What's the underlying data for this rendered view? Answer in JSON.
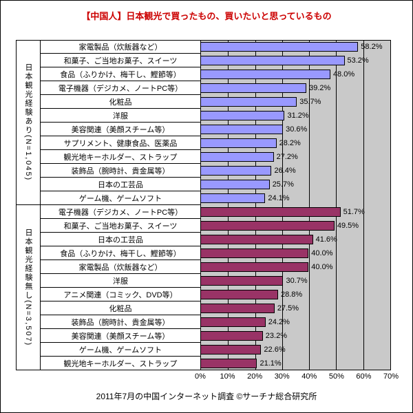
{
  "title": "【中国人】日本観光で買ったもの、買いたいと思っているもの",
  "footer": "2011年7月の中国インターネット調査 ©サーチナ総合研究所",
  "colors": {
    "title": "#cc0000",
    "plot_background": "#c9c9c9",
    "group1_bar": "#9999ff",
    "group2_bar": "#993366"
  },
  "chart_data": {
    "type": "bar",
    "orientation": "horizontal",
    "title": "【中国人】日本観光で買ったもの、買いたいと思っているもの",
    "xlabel": "",
    "ylabel": "",
    "xlim": [
      0,
      70
    ],
    "x_ticks": [
      "0%",
      "10%",
      "20%",
      "30%",
      "40%",
      "50%",
      "60%",
      "70%"
    ],
    "grid": true,
    "groups": [
      {
        "name": "日本観光経験あり(N=1,045)",
        "color": "#9999ff",
        "items": [
          {
            "label": "家電製品（炊飯器など）",
            "value": 58.2
          },
          {
            "label": "和菓子、ご当地お菓子、スイーツ",
            "value": 53.2
          },
          {
            "label": "食品（ふりかけ、梅干し、鰹節等）",
            "value": 48.0
          },
          {
            "label": "電子機器（デジカメ、ノートPC等）",
            "value": 39.2
          },
          {
            "label": "化粧品",
            "value": 35.7
          },
          {
            "label": "洋服",
            "value": 31.2
          },
          {
            "label": "美容関連（美顔スチーム等）",
            "value": 30.6
          },
          {
            "label": "サプリメント、健康食品、医薬品",
            "value": 28.2
          },
          {
            "label": "観光地キーホルダー、ストラップ",
            "value": 27.2
          },
          {
            "label": "装飾品（腕時計、貴金属等）",
            "value": 26.4
          },
          {
            "label": "日本の工芸品",
            "value": 25.7
          },
          {
            "label": "ゲーム機、ゲームソフト",
            "value": 24.1
          }
        ]
      },
      {
        "name": "日本観光経験無し(N=3,507)",
        "color": "#993366",
        "items": [
          {
            "label": "電子機器（デジカメ、ノートPC等）",
            "value": 51.7
          },
          {
            "label": "和菓子、ご当地お菓子、スイーツ",
            "value": 49.5
          },
          {
            "label": "日本の工芸品",
            "value": 41.6
          },
          {
            "label": "食品（ふりかけ、梅干し、鰹節等）",
            "value": 40.0
          },
          {
            "label": "家電製品（炊飯器など）",
            "value": 40.0
          },
          {
            "label": "洋服",
            "value": 30.7
          },
          {
            "label": "アニメ関連（コミック、DVD等）",
            "value": 28.8
          },
          {
            "label": "化粧品",
            "value": 27.5
          },
          {
            "label": "装飾品（腕時計、貴金属等）",
            "value": 24.2
          },
          {
            "label": "美容関連（美顔スチーム等）",
            "value": 23.2
          },
          {
            "label": "ゲーム機、ゲームソフト",
            "value": 22.6
          },
          {
            "label": "観光地キーホルダー、ストラップ",
            "value": 21.1
          }
        ]
      }
    ]
  }
}
